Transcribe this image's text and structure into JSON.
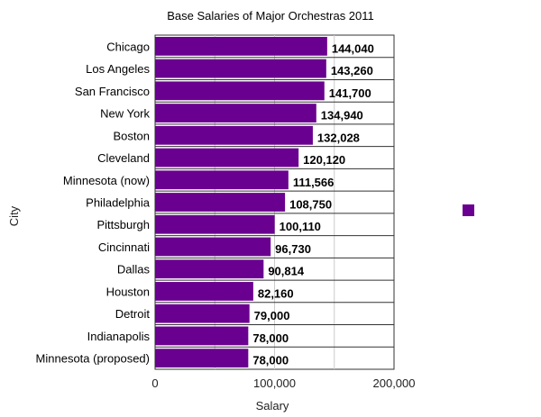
{
  "chart_data": {
    "type": "bar",
    "orientation": "horizontal",
    "title": "Base Salaries of Major Orchestras 2011",
    "xlabel": "Salary",
    "ylabel": "City",
    "categories": [
      "Chicago",
      "Los Angeles",
      "San Francisco",
      "New York",
      "Boston",
      "Cleveland",
      "Minnesota (now)",
      "Philadelphia",
      "Pittsburgh",
      "Cincinnati",
      "Dallas",
      "Houston",
      "Detroit",
      "Indianapolis",
      "Minnesota (proposed)"
    ],
    "values": [
      144040,
      143260,
      141700,
      134940,
      132028,
      120120,
      111566,
      108750,
      100110,
      96730,
      90814,
      82160,
      79000,
      78000,
      78000
    ],
    "value_labels": [
      "144,040",
      "143,260",
      "141,700",
      "134,940",
      "132,028",
      "120,120",
      "111,566",
      "108,750",
      "100,110",
      "96,730",
      "90,814",
      "82,160",
      "79,000",
      "78,000",
      "78,000"
    ],
    "xlim": [
      0,
      200000
    ],
    "x_ticks": [
      0,
      100000,
      200000
    ],
    "x_tick_labels": [
      "0",
      "100,000",
      "200,000"
    ],
    "grid": true,
    "legend": "right",
    "bar_color": "#6a008f"
  }
}
